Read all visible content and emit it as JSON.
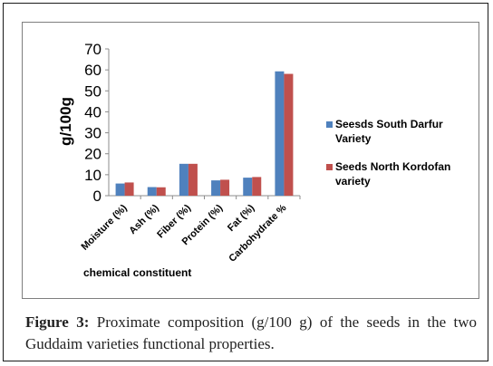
{
  "figure": {
    "caption_label": "Figure 3:",
    "caption_text": " Proximate composition (g/100 g) of the seeds in the two Guddaim varieties functional properties."
  },
  "chart_data": {
    "type": "bar",
    "categories": [
      "Moisture (%)",
      "Ash (%)",
      "Fiber (%)",
      "Protein (%)",
      "Fat (%)",
      "Carbohydrate %"
    ],
    "series": [
      {
        "name": "Seesds South Darfur Variety",
        "color": "#4f81bd",
        "values": [
          5.8,
          4.1,
          15.2,
          7.3,
          8.6,
          59.3
        ]
      },
      {
        "name": "Seeds North Kordofan variety",
        "color": "#c0504d",
        "values": [
          6.3,
          4.0,
          15.2,
          7.6,
          8.9,
          58.1
        ]
      }
    ],
    "ylabel": "g/100g",
    "xlabel": "chemical constituent",
    "ylim": [
      0,
      70
    ],
    "yticks": [
      0,
      10,
      20,
      30,
      40,
      50,
      60,
      70
    ],
    "grid": false,
    "legend_placement": "right"
  }
}
